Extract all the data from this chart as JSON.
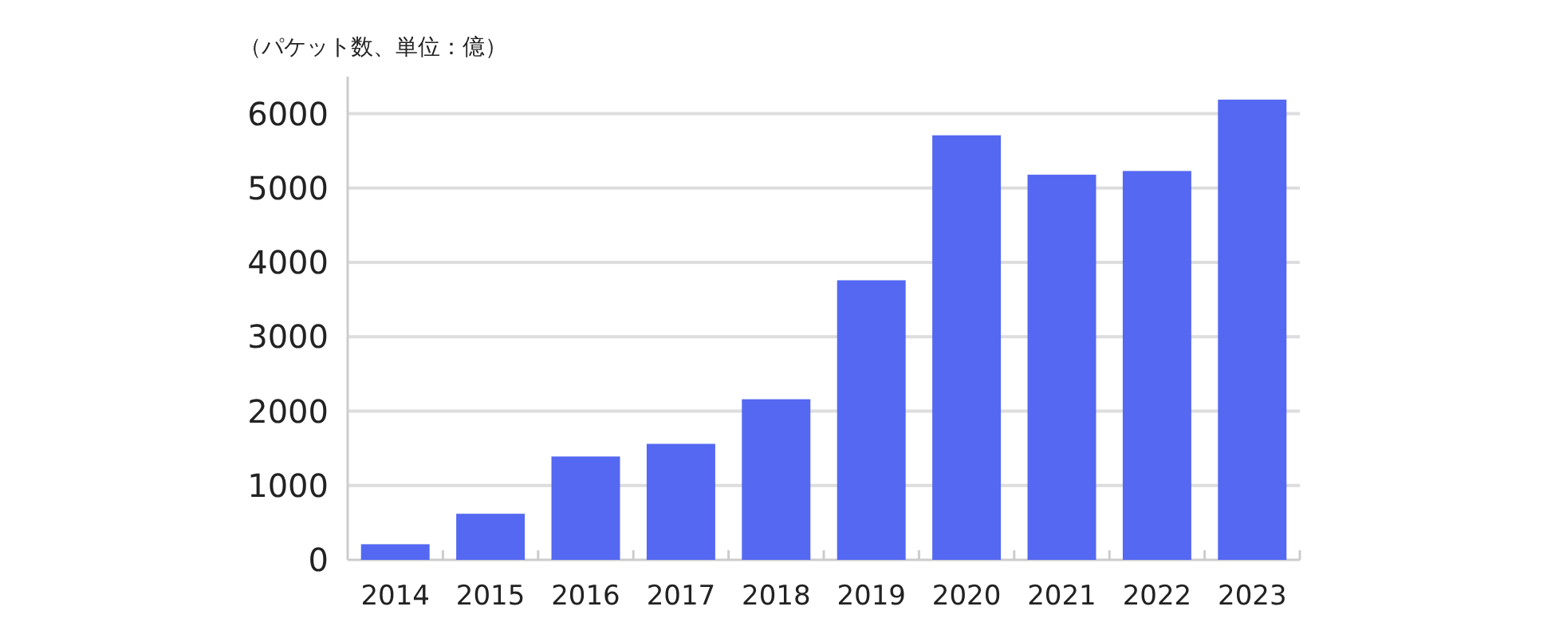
{
  "chart_data": {
    "type": "bar",
    "title": "（パケット数、単位：億）",
    "categories": [
      "2014",
      "2015",
      "2016",
      "2017",
      "2018",
      "2019",
      "2020",
      "2021",
      "2022",
      "2023"
    ],
    "values": [
      210,
      620,
      1390,
      1560,
      2160,
      3760,
      5710,
      5180,
      5230,
      6190
    ],
    "color": "#5468f2",
    "ylim": [
      0,
      6500
    ],
    "yticks": [
      0,
      1000,
      2000,
      3000,
      4000,
      5000,
      6000
    ],
    "grid": "y"
  }
}
